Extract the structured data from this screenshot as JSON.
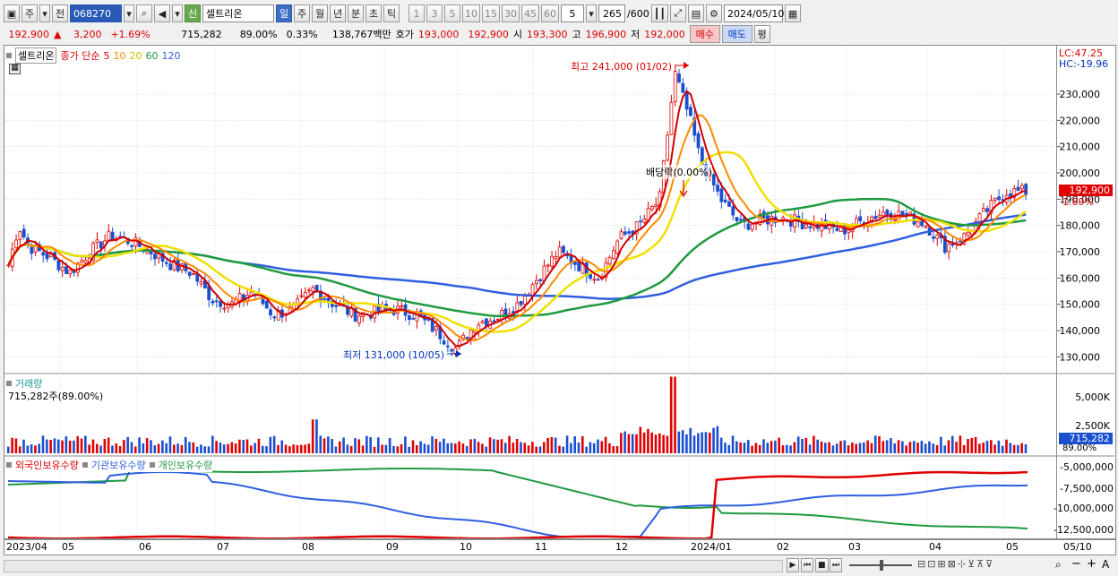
{
  "toolbar": {
    "period_label": "주",
    "prev_label": "전",
    "stock_code": "068270",
    "new_badge": "신",
    "stock_name": "셀트리온",
    "periods": [
      "일",
      "주",
      "월",
      "년",
      "분",
      "초",
      "틱"
    ],
    "intervals": [
      "1",
      "3",
      "5",
      "10",
      "15",
      "30",
      "45",
      "60"
    ],
    "interval_value": "5",
    "count_value": "265",
    "count_total": "/600",
    "date": "2024/05/10"
  },
  "quote": {
    "price": "192,900",
    "change_arrow": "▲",
    "change": "3,200",
    "change_pct": "+1.69%",
    "volume": "715,282",
    "vol_ratio": "89.00%",
    "turnover_pct": "0.33%",
    "amount": "138,767백만",
    "ask_label": "호가",
    "ask": "193,000",
    "bid": "192,900",
    "open_label": "시",
    "open": "193,300",
    "high_label": "고",
    "high": "196,900",
    "low_label": "저",
    "low": "192,000",
    "buy_label": "매수",
    "sell_label": "매도",
    "eval_label": "평"
  },
  "price_panel": {
    "stock_name": "셀트리온",
    "ma_label": "종가 단순",
    "ma_periods": [
      "5",
      "10",
      "20",
      "60",
      "120"
    ],
    "ma_colors": [
      "#d00000",
      "#ff8a00",
      "#f0e000",
      "#1f9a3f",
      "#2f5fe0"
    ],
    "lc": "LC:47.25",
    "hc": "HC:-19.96",
    "high_annotation": "최고 241,000 (01/02)",
    "low_annotation": "최저 131,000 (10/05)",
    "dividend_annotation": "배당락(0.00%)",
    "current_price": "192,900",
    "current_pct": "1.69%"
  },
  "volume_panel": {
    "title": "거래량",
    "value_text": "715,282주(89.00%)",
    "current": "715,282",
    "current_pct": "89.00%",
    "y_ticks": [
      "5,000K",
      "2,500K"
    ]
  },
  "holding_panel": {
    "series": [
      "외국인보유수량",
      "기관보유수량",
      "개인보유수량"
    ],
    "colors": [
      "#e00000",
      "#2f5fe0",
      "#1f9a3f"
    ],
    "y_ticks": [
      "-5,000,000",
      "-7,500,000",
      "-10,000,000",
      "-12,500,000"
    ]
  },
  "x_labels": [
    "2023/04",
    "05",
    "06",
    "07",
    "08",
    "09",
    "10",
    "11",
    "12",
    "2024/01",
    "02",
    "03",
    "04",
    "05"
  ],
  "x_end_label": "05/10",
  "chart_data": {
    "type": "candlestick",
    "y_ticks": [
      230000,
      220000,
      210000,
      200000,
      190000,
      180000,
      170000,
      160000,
      150000,
      140000,
      130000
    ],
    "y_range": [
      125000,
      245000
    ],
    "close_series": [
      {
        "x": 0.0,
        "y": 165000
      },
      {
        "x": 0.01,
        "y": 180000
      },
      {
        "x": 0.02,
        "y": 172000
      },
      {
        "x": 0.04,
        "y": 168000
      },
      {
        "x": 0.06,
        "y": 162000
      },
      {
        "x": 0.08,
        "y": 170000
      },
      {
        "x": 0.1,
        "y": 176000
      },
      {
        "x": 0.12,
        "y": 174000
      },
      {
        "x": 0.14,
        "y": 170000
      },
      {
        "x": 0.16,
        "y": 165000
      },
      {
        "x": 0.18,
        "y": 162000
      },
      {
        "x": 0.2,
        "y": 152000
      },
      {
        "x": 0.22,
        "y": 150000
      },
      {
        "x": 0.24,
        "y": 155000
      },
      {
        "x": 0.26,
        "y": 146000
      },
      {
        "x": 0.28,
        "y": 148000
      },
      {
        "x": 0.3,
        "y": 156000
      },
      {
        "x": 0.32,
        "y": 150000
      },
      {
        "x": 0.34,
        "y": 146000
      },
      {
        "x": 0.36,
        "y": 147000
      },
      {
        "x": 0.38,
        "y": 148000
      },
      {
        "x": 0.4,
        "y": 146000
      },
      {
        "x": 0.42,
        "y": 140000
      },
      {
        "x": 0.44,
        "y": 133000
      },
      {
        "x": 0.46,
        "y": 143000
      },
      {
        "x": 0.48,
        "y": 145000
      },
      {
        "x": 0.5,
        "y": 150000
      },
      {
        "x": 0.52,
        "y": 160000
      },
      {
        "x": 0.54,
        "y": 170000
      },
      {
        "x": 0.56,
        "y": 165000
      },
      {
        "x": 0.58,
        "y": 160000
      },
      {
        "x": 0.6,
        "y": 175000
      },
      {
        "x": 0.62,
        "y": 180000
      },
      {
        "x": 0.64,
        "y": 190000
      },
      {
        "x": 0.655,
        "y": 238000
      },
      {
        "x": 0.67,
        "y": 220000
      },
      {
        "x": 0.68,
        "y": 205000
      },
      {
        "x": 0.7,
        "y": 190000
      },
      {
        "x": 0.72,
        "y": 180000
      },
      {
        "x": 0.74,
        "y": 182000
      },
      {
        "x": 0.76,
        "y": 183000
      },
      {
        "x": 0.78,
        "y": 181000
      },
      {
        "x": 0.8,
        "y": 180000
      },
      {
        "x": 0.82,
        "y": 178000
      },
      {
        "x": 0.84,
        "y": 182000
      },
      {
        "x": 0.86,
        "y": 185000
      },
      {
        "x": 0.88,
        "y": 184000
      },
      {
        "x": 0.9,
        "y": 181000
      },
      {
        "x": 0.92,
        "y": 172000
      },
      {
        "x": 0.94,
        "y": 176000
      },
      {
        "x": 0.96,
        "y": 185000
      },
      {
        "x": 0.98,
        "y": 192900
      }
    ]
  }
}
